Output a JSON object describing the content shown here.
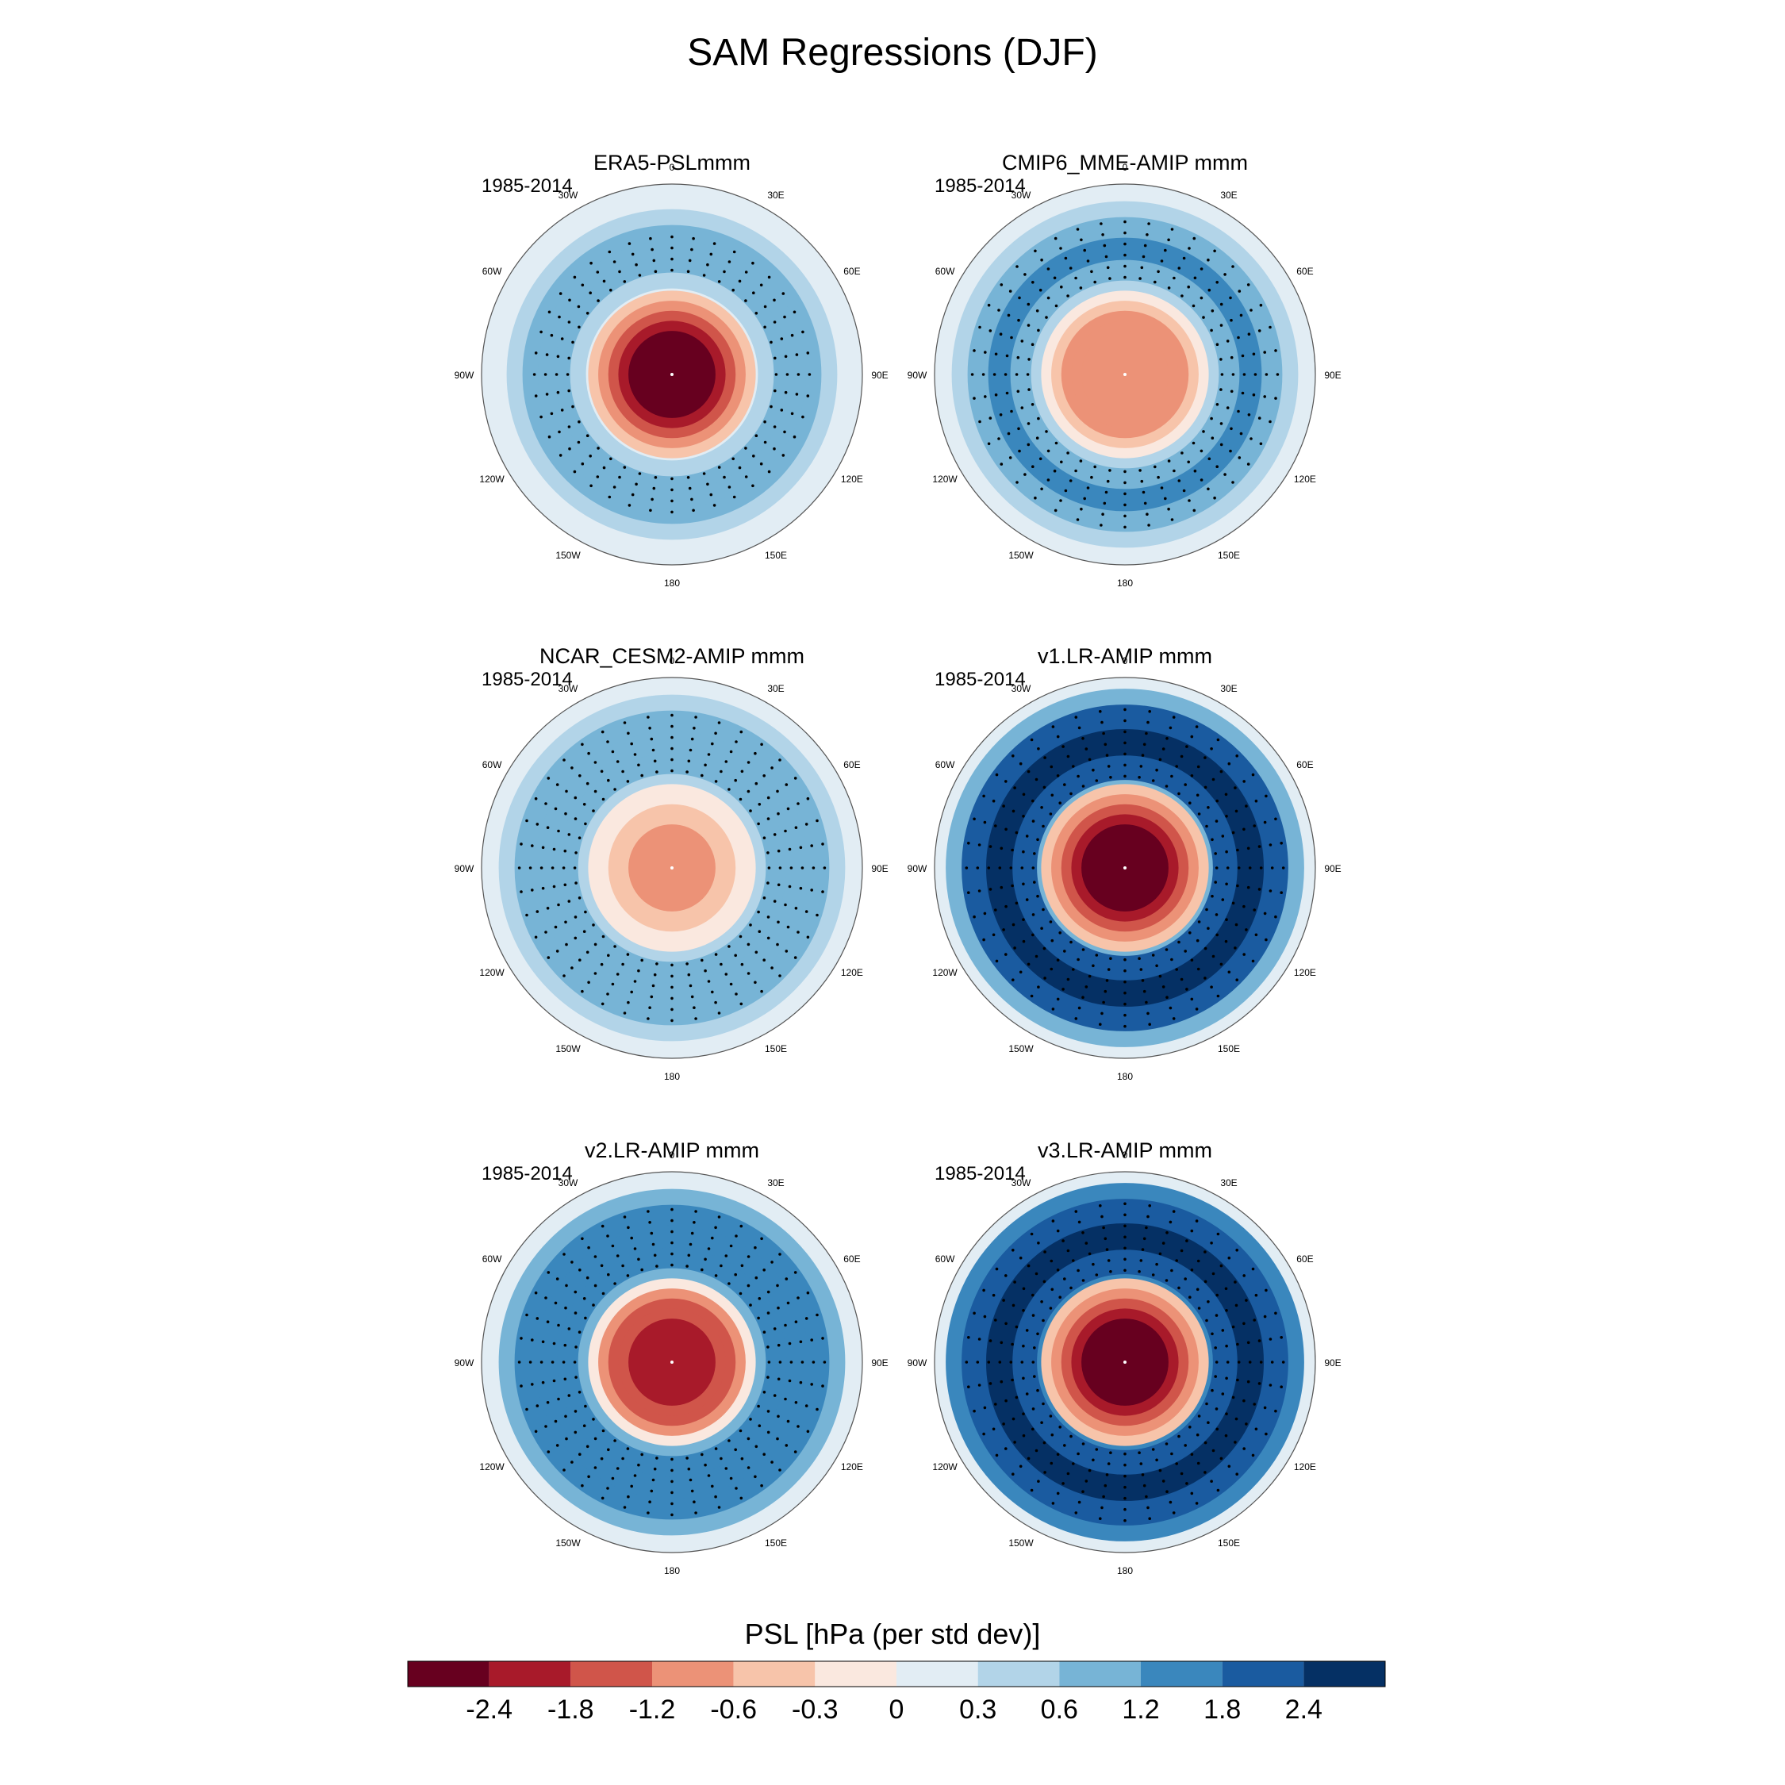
{
  "figure": {
    "title": "SAM Regressions (DJF)",
    "colorbar_label": "PSL [hPa (per std dev)]"
  },
  "chart_data": {
    "type": "heatmap",
    "projection": "south-polar-stereographic",
    "variable": "PSL",
    "units": "hPa (per std dev)",
    "period": "1985-2014",
    "longitude_labels": [
      "0",
      "30E",
      "60E",
      "90E",
      "120E",
      "150E",
      "180",
      "150W",
      "120W",
      "90W",
      "60W",
      "30W"
    ],
    "colorbar": {
      "tick_labels": [
        "-2.4",
        "-1.8",
        "-1.2",
        "-0.6",
        "-0.3",
        "0",
        "0.3",
        "0.6",
        "1.2",
        "1.8",
        "2.4"
      ],
      "colors": [
        "#67001f",
        "#a81a2a",
        "#d0554a",
        "#ec9277",
        "#f7c4aa",
        "#fae8df",
        "#e2edf4",
        "#b2d4e8",
        "#77b4d6",
        "#3a87bd",
        "#1a5ba0",
        "#053064"
      ]
    },
    "panels": [
      {
        "title": "ERA5-PSLmmm",
        "period": "1985-2014",
        "center_level": -2.7,
        "ring_level": 0.8,
        "ring_strength": "weak"
      },
      {
        "title": "CMIP6_MME-AMIP  mmm",
        "period": "1985-2014",
        "center_level": -1.2,
        "ring_level": 1.0,
        "ring_strength": "moderate"
      },
      {
        "title": "NCAR_CESM2-AMIP  mmm",
        "period": "1985-2014",
        "center_level": -0.7,
        "ring_level": 0.9,
        "ring_strength": "moderate"
      },
      {
        "title": "v1.LR-AMIP  mmm",
        "period": "1985-2014",
        "center_level": -2.7,
        "ring_level": 2.0,
        "ring_strength": "strong"
      },
      {
        "title": "v2.LR-AMIP  mmm",
        "period": "1985-2014",
        "center_level": -2.2,
        "ring_level": 1.3,
        "ring_strength": "moderate"
      },
      {
        "title": "v3.LR-AMIP  mmm",
        "period": "1985-2014",
        "center_level": -2.7,
        "ring_level": 2.2,
        "ring_strength": "strong"
      }
    ]
  }
}
